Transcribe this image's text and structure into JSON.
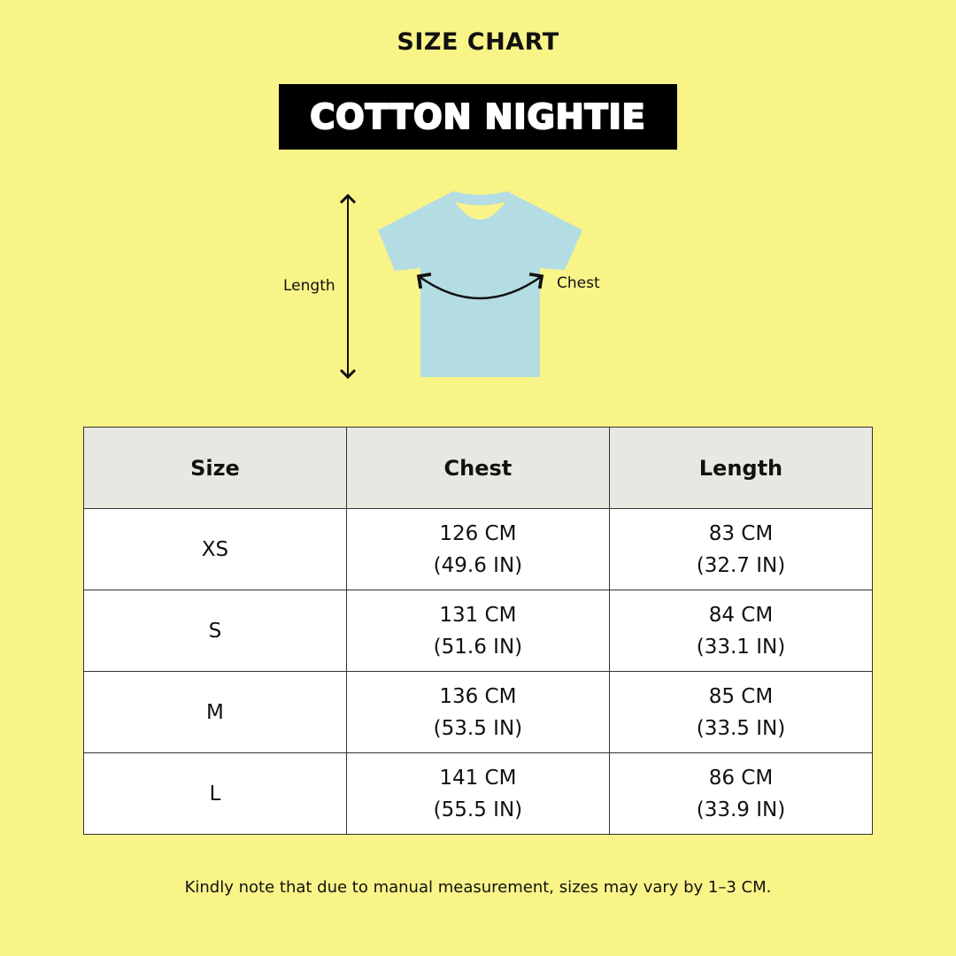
{
  "title": "SIZE CHART",
  "product": "COTTON NIGHTIE",
  "diagram": {
    "length_label": "Length",
    "chest_label": "Chest",
    "shirt_color": "#b4dde3"
  },
  "table": {
    "headers": [
      "Size",
      "Chest",
      "Length"
    ],
    "rows": [
      {
        "size": "XS",
        "chest_cm": "126 CM",
        "chest_in": "(49.6 IN)",
        "length_cm": "83 CM",
        "length_in": "(32.7 IN)"
      },
      {
        "size": "S",
        "chest_cm": "131 CM",
        "chest_in": "(51.6 IN)",
        "length_cm": "84 CM",
        "length_in": "(33.1 IN)"
      },
      {
        "size": "M",
        "chest_cm": "136 CM",
        "chest_in": "(53.5 IN)",
        "length_cm": "85 CM",
        "length_in": "(33.5 IN)"
      },
      {
        "size": "L",
        "chest_cm": "141 CM",
        "chest_in": "(55.5 IN)",
        "length_cm": "86 CM",
        "length_in": "(33.9 IN)"
      }
    ]
  },
  "note": "Kindly note that due to manual measurement, sizes may vary by 1–3 CM.",
  "colors": {
    "background": "#f9f488",
    "header_bg": "#e8e8e2"
  }
}
